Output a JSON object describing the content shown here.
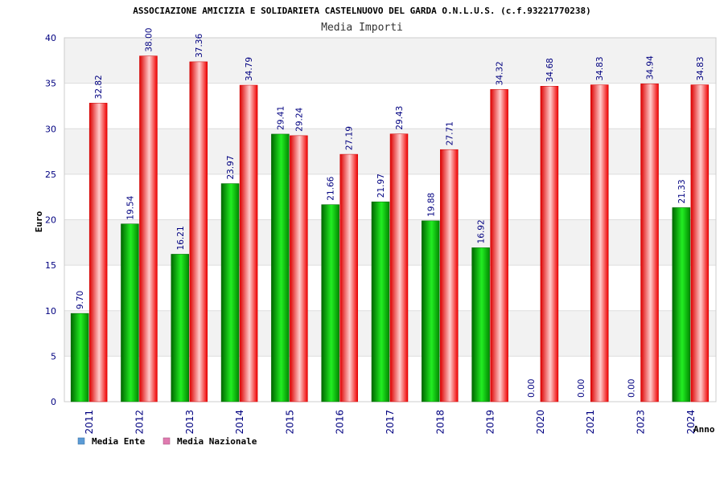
{
  "header": {
    "title": "ASSOCIAZIONE AMICIZIA E SOLIDARIETA CASTELNUOVO DEL GARDA O.N.L.U.S. (c.f.93221770238)",
    "subtitle": "Media Importi"
  },
  "colors": {
    "green_dark": "#007a00",
    "green_light": "#33ff33",
    "red_dark": "#e00000",
    "red_light": "#ffc8c8",
    "band": "#f2f2f2",
    "axis_text": "#000080",
    "legend_ente": "#5b9bd5",
    "legend_nazionale": "#e07bb0"
  },
  "chart_data": {
    "type": "bar",
    "title": "ASSOCIAZIONE AMICIZIA E SOLIDARIETA CASTELNUOVO DEL GARDA O.N.L.U.S. (c.f.93221770238)",
    "subtitle": "Media Importi",
    "xlabel": "Anno",
    "ylabel": "Euro",
    "ylim": [
      0,
      40
    ],
    "yticks": [
      0,
      5,
      10,
      15,
      20,
      25,
      30,
      35,
      40
    ],
    "grid": true,
    "legend_position": "bottom-left",
    "categories": [
      "2011",
      "2012",
      "2013",
      "2014",
      "2015",
      "2016",
      "2017",
      "2018",
      "2019",
      "2020",
      "2021",
      "2023",
      "2024"
    ],
    "series": [
      {
        "name": "Media Ente",
        "values": [
          9.7,
          19.54,
          16.21,
          23.97,
          29.41,
          21.66,
          21.97,
          19.88,
          16.92,
          0.0,
          0.0,
          0.0,
          21.33
        ],
        "labels": [
          "9.70",
          "19.54",
          "16.21",
          "23.97",
          "29.41",
          "21.66",
          "21.97",
          "19.88",
          "16.92",
          "0.00",
          "0.00",
          "0.00",
          "21.33"
        ]
      },
      {
        "name": "Media Nazionale",
        "values": [
          32.82,
          38.0,
          37.36,
          34.79,
          29.24,
          27.19,
          29.43,
          27.71,
          34.32,
          34.68,
          34.83,
          34.94,
          34.83
        ],
        "labels": [
          "32.82",
          "38.00",
          "37.36",
          "34.79",
          "29.24",
          "27.19",
          "29.43",
          "27.71",
          "34.32",
          "34.68",
          "34.83",
          "34.94",
          "34.83"
        ]
      }
    ]
  }
}
